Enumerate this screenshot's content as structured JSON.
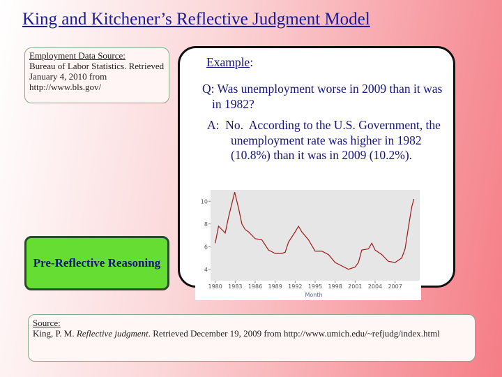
{
  "title": "King and Kitchener’s Reflective Judgment Model",
  "data_source": {
    "heading": "Employment Data Source:",
    "text": "Bureau of Labor Statistics. Retrieved January 4, 2010 from http://www.bls.gov/"
  },
  "example": {
    "label": "Example",
    "colon": ":",
    "question": "Q: Was unemployment worse in 2009 than it was in 1982?",
    "answer": "A:  No.  According to the U.S. Government, the unemployment rate was higher in 1982 (10.8%) than it was in 2009 (10.2%)."
  },
  "stage": "Pre-Reflective Reasoning",
  "reference": {
    "heading": "Source:",
    "before": "King, P. M.",
    "italic": "Reflective judgment",
    "after": ". Retrieved December 19, 2009 from http://www.umich.edu/~refjudg/index.html"
  },
  "chart_data": {
    "type": "line",
    "x_label": "Month",
    "color": "#a01818",
    "x": [
      1980.0,
      1980.5,
      1981.0,
      1981.5,
      1982.0,
      1982.5,
      1982.92,
      1983.5,
      1984.0,
      1984.5,
      1985.0,
      1986.0,
      1987.0,
      1988.0,
      1989.0,
      1990.0,
      1990.5,
      1991.0,
      1992.0,
      1992.5,
      1993.0,
      1994.0,
      1995.0,
      1996.0,
      1997.0,
      1998.0,
      1999.0,
      2000.0,
      2001.0,
      2001.5,
      2002.0,
      2003.0,
      2003.5,
      2004.0,
      2005.0,
      2006.0,
      2007.0,
      2008.0,
      2008.5,
      2009.0,
      2009.5,
      2009.83
    ],
    "values": [
      6.3,
      7.8,
      7.5,
      7.2,
      8.6,
      9.8,
      10.8,
      9.4,
      8.0,
      7.5,
      7.3,
      6.7,
      6.6,
      5.7,
      5.4,
      5.4,
      5.5,
      6.4,
      7.3,
      7.8,
      7.3,
      6.6,
      5.6,
      5.6,
      5.3,
      4.6,
      4.3,
      4.0,
      4.2,
      4.6,
      5.7,
      5.8,
      6.3,
      5.7,
      5.3,
      4.7,
      4.6,
      5.0,
      5.8,
      7.7,
      9.5,
      10.2
    ],
    "xlim": [
      1979.3,
      2010.7
    ],
    "xticks": [
      1980,
      1983,
      1986,
      1989,
      1992,
      1995,
      1998,
      2001,
      2004,
      2007
    ],
    "ylim": [
      3,
      11
    ],
    "yticks": [
      4,
      6,
      8,
      10
    ]
  }
}
